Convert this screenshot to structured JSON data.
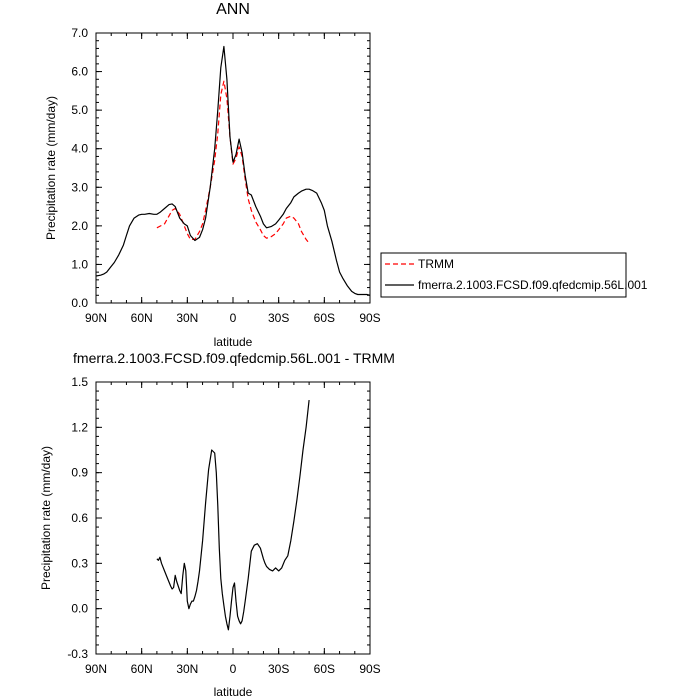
{
  "chart_data": [
    {
      "type": "line",
      "title": "ANN",
      "xlabel": "latitude",
      "ylabel": "Precipitation rate (mm/day)",
      "xlim": [
        90,
        -90
      ],
      "ylim": [
        0.0,
        7.0
      ],
      "xticks": [
        {
          "value": 90,
          "label": "90N"
        },
        {
          "value": 60,
          "label": "60N"
        },
        {
          "value": 30,
          "label": "30N"
        },
        {
          "value": 0,
          "label": "0"
        },
        {
          "value": -30,
          "label": "30S"
        },
        {
          "value": -60,
          "label": "60S"
        },
        {
          "value": -90,
          "label": "90S"
        }
      ],
      "yticks": [
        {
          "value": 0.0,
          "label": "0.0"
        },
        {
          "value": 1.0,
          "label": "1.0"
        },
        {
          "value": 2.0,
          "label": "2.0"
        },
        {
          "value": 3.0,
          "label": "3.0"
        },
        {
          "value": 4.0,
          "label": "4.0"
        },
        {
          "value": 5.0,
          "label": "5.0"
        },
        {
          "value": 6.0,
          "label": "6.0"
        },
        {
          "value": 7.0,
          "label": "7.0"
        }
      ],
      "legend_position": "right",
      "series": [
        {
          "name": "TRMM",
          "color": "#ff0000",
          "dash": true,
          "x": [
            50,
            45,
            40,
            38,
            35,
            32,
            30,
            28,
            25,
            22,
            20,
            18,
            15,
            12,
            10,
            8,
            6,
            4,
            2,
            0,
            -2,
            -4,
            -6,
            -8,
            -10,
            -12,
            -15,
            -18,
            -20,
            -22,
            -25,
            -28,
            -30,
            -33,
            -35,
            -38,
            -40,
            -43,
            -45,
            -48,
            -50
          ],
          "y": [
            1.95,
            2.05,
            2.4,
            2.45,
            2.3,
            2.0,
            1.8,
            1.65,
            1.65,
            1.85,
            2.05,
            2.4,
            3.0,
            3.7,
            4.4,
            5.4,
            5.75,
            5.3,
            4.3,
            3.6,
            3.75,
            4.05,
            3.8,
            3.2,
            2.7,
            2.4,
            2.1,
            1.9,
            1.75,
            1.68,
            1.72,
            1.8,
            1.9,
            2.05,
            2.2,
            2.25,
            2.2,
            2.05,
            1.85,
            1.65,
            1.55
          ]
        },
        {
          "name": "fmerra.2.1003.FCSD.f09.qfedcmip.56L.001",
          "color": "#000000",
          "dash": false,
          "x": [
            90,
            87,
            85,
            83,
            80,
            78,
            75,
            72,
            70,
            68,
            65,
            62,
            60,
            58,
            55,
            52,
            50,
            48,
            45,
            42,
            40,
            38,
            35,
            32,
            30,
            28,
            25,
            22,
            20,
            18,
            15,
            12,
            10,
            8,
            6,
            4,
            2,
            0,
            -2,
            -4,
            -6,
            -8,
            -10,
            -12,
            -15,
            -18,
            -20,
            -22,
            -25,
            -28,
            -30,
            -33,
            -35,
            -38,
            -40,
            -43,
            -45,
            -48,
            -50,
            -52,
            -55,
            -58,
            -60,
            -62,
            -65,
            -68,
            -70,
            -72,
            -75,
            -78,
            -80,
            -82,
            -85,
            -88,
            -90
          ],
          "y": [
            0.7,
            0.72,
            0.75,
            0.8,
            0.95,
            1.05,
            1.25,
            1.5,
            1.75,
            2.0,
            2.2,
            2.28,
            2.3,
            2.3,
            2.32,
            2.3,
            2.3,
            2.35,
            2.45,
            2.55,
            2.57,
            2.5,
            2.2,
            2.05,
            2.0,
            1.75,
            1.62,
            1.7,
            1.9,
            2.2,
            3.0,
            4.0,
            5.0,
            6.1,
            6.65,
            5.8,
            4.3,
            3.65,
            3.85,
            4.25,
            3.9,
            3.3,
            2.85,
            2.8,
            2.5,
            2.25,
            2.05,
            1.95,
            1.98,
            2.05,
            2.15,
            2.3,
            2.45,
            2.6,
            2.75,
            2.85,
            2.9,
            2.95,
            2.95,
            2.92,
            2.85,
            2.6,
            2.4,
            2.0,
            1.6,
            1.1,
            0.8,
            0.65,
            0.45,
            0.3,
            0.25,
            0.22,
            0.22,
            0.22,
            0.2
          ]
        }
      ]
    },
    {
      "type": "line",
      "title": "fmerra.2.1003.FCSD.f09.qfedcmip.56L.001 - TRMM",
      "xlabel": "latitude",
      "ylabel": "Precipitation rate (mm/day)",
      "xlim": [
        90,
        -90
      ],
      "ylim": [
        -0.3,
        1.5
      ],
      "xticks": [
        {
          "value": 90,
          "label": "90N"
        },
        {
          "value": 60,
          "label": "60N"
        },
        {
          "value": 30,
          "label": "30N"
        },
        {
          "value": 0,
          "label": "0"
        },
        {
          "value": -30,
          "label": "30S"
        },
        {
          "value": -60,
          "label": "60S"
        },
        {
          "value": -90,
          "label": "90S"
        }
      ],
      "yticks": [
        {
          "value": -0.3,
          "label": "-0.3"
        },
        {
          "value": 0.0,
          "label": "0.0"
        },
        {
          "value": 0.3,
          "label": "0.3"
        },
        {
          "value": 0.6,
          "label": "0.6"
        },
        {
          "value": 0.9,
          "label": "0.9"
        },
        {
          "value": 1.2,
          "label": "1.2"
        },
        {
          "value": 1.5,
          "label": "1.5"
        }
      ],
      "series": [
        {
          "color": "#000000",
          "dash": false,
          "x": [
            50,
            49,
            48,
            47,
            45,
            43,
            41,
            40,
            39,
            38,
            37,
            35,
            34,
            33,
            32,
            31,
            30,
            29,
            28,
            27,
            26,
            25,
            24,
            23,
            22,
            20,
            18,
            16,
            14,
            12,
            11,
            10,
            9,
            8,
            7,
            6,
            5,
            4,
            3,
            2,
            1,
            0,
            -1,
            -2,
            -3,
            -4,
            -5,
            -6,
            -7,
            -8,
            -10,
            -12,
            -14,
            -16,
            -18,
            -20,
            -21,
            -22,
            -24,
            -26,
            -28,
            -30,
            -32,
            -34,
            -36,
            -38,
            -40,
            -42,
            -44,
            -46,
            -48,
            -50
          ],
          "y": [
            0.33,
            0.32,
            0.34,
            0.3,
            0.25,
            0.2,
            0.15,
            0.13,
            0.14,
            0.22,
            0.18,
            0.12,
            0.1,
            0.22,
            0.3,
            0.25,
            0.05,
            0.0,
            0.03,
            0.05,
            0.05,
            0.08,
            0.12,
            0.18,
            0.25,
            0.45,
            0.7,
            0.92,
            1.05,
            1.03,
            0.9,
            0.68,
            0.4,
            0.2,
            0.1,
            0.02,
            -0.05,
            -0.1,
            -0.14,
            -0.05,
            0.05,
            0.14,
            0.17,
            0.05,
            -0.05,
            -0.08,
            -0.1,
            -0.08,
            -0.02,
            0.05,
            0.2,
            0.38,
            0.42,
            0.43,
            0.4,
            0.33,
            0.3,
            0.28,
            0.26,
            0.25,
            0.27,
            0.25,
            0.27,
            0.32,
            0.35,
            0.45,
            0.58,
            0.72,
            0.88,
            1.05,
            1.2,
            1.38
          ]
        }
      ]
    }
  ]
}
